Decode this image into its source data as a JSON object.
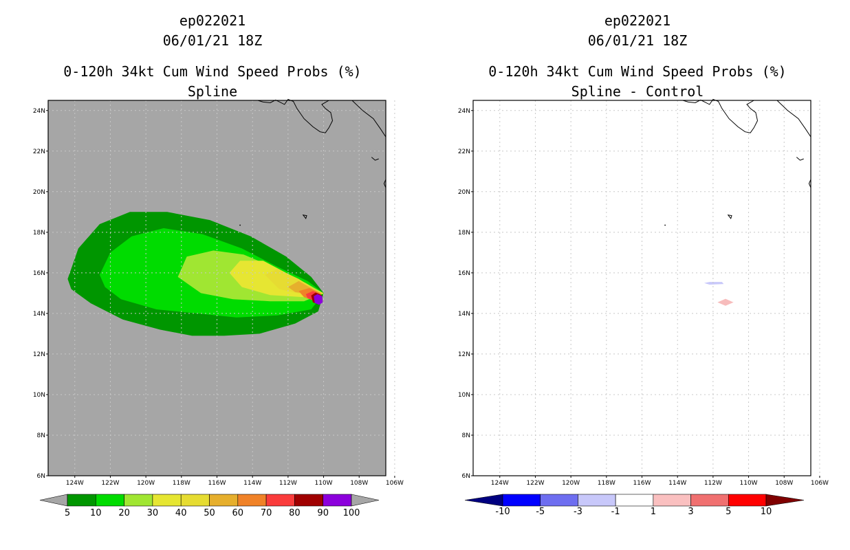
{
  "chart_data": [
    {
      "type": "heatmap",
      "storm_id": "ep022021",
      "datetime": "06/01/21 18Z",
      "title": "0-120h 34kt Cum Wind Speed Probs (%)",
      "subtitle": "Spline",
      "lat_range": [
        6,
        24.5
      ],
      "lon_range": [
        -125.5,
        -106.5
      ],
      "y_tick_labels": [
        "24N",
        "22N",
        "20N",
        "18N",
        "16N",
        "14N",
        "12N",
        "10N",
        "8N",
        "6N"
      ],
      "x_tick_labels": [
        "124W",
        "122W",
        "120W",
        "118W",
        "116W",
        "114W",
        "112W",
        "110W",
        "108W",
        "106W"
      ],
      "grid": true,
      "background_color": "#a6a6a6",
      "colorbar": {
        "labels": [
          "5",
          "10",
          "20",
          "30",
          "40",
          "50",
          "60",
          "70",
          "80",
          "90",
          "100"
        ],
        "colors": [
          "#009600",
          "#00dc00",
          "#a0e632",
          "#e6e632",
          "#e6dc32",
          "#e6af2d",
          "#f08228",
          "#fa3c3c",
          "#a00000",
          "#8c00dc"
        ],
        "under_color": "#a6a6a6",
        "over_color": "#a6a6a6"
      }
    },
    {
      "type": "heatmap",
      "storm_id": "ep022021",
      "datetime": "06/01/21 18Z",
      "title": "0-120h 34kt Cum Wind Speed Probs (%)",
      "subtitle": "Spline - Control",
      "lat_range": [
        6,
        24.5
      ],
      "lon_range": [
        -125.5,
        -106.5
      ],
      "y_tick_labels": [
        "24N",
        "22N",
        "20N",
        "18N",
        "16N",
        "14N",
        "12N",
        "10N",
        "8N",
        "6N"
      ],
      "x_tick_labels": [
        "124W",
        "122W",
        "120W",
        "118W",
        "116W",
        "114W",
        "112W",
        "110W",
        "108W",
        "106W"
      ],
      "grid": true,
      "background_color": "#ffffff",
      "colorbar": {
        "labels": [
          "-10",
          "-5",
          "-3",
          "-1",
          "1",
          "3",
          "5",
          "10"
        ],
        "colors": [
          "#0000ff",
          "#6e6ef0",
          "#c8c8fa",
          "#ffffff",
          "#fac0c0",
          "#f07070",
          "#ff0000"
        ],
        "under_color": "#000080",
        "over_color": "#800000"
      }
    }
  ]
}
